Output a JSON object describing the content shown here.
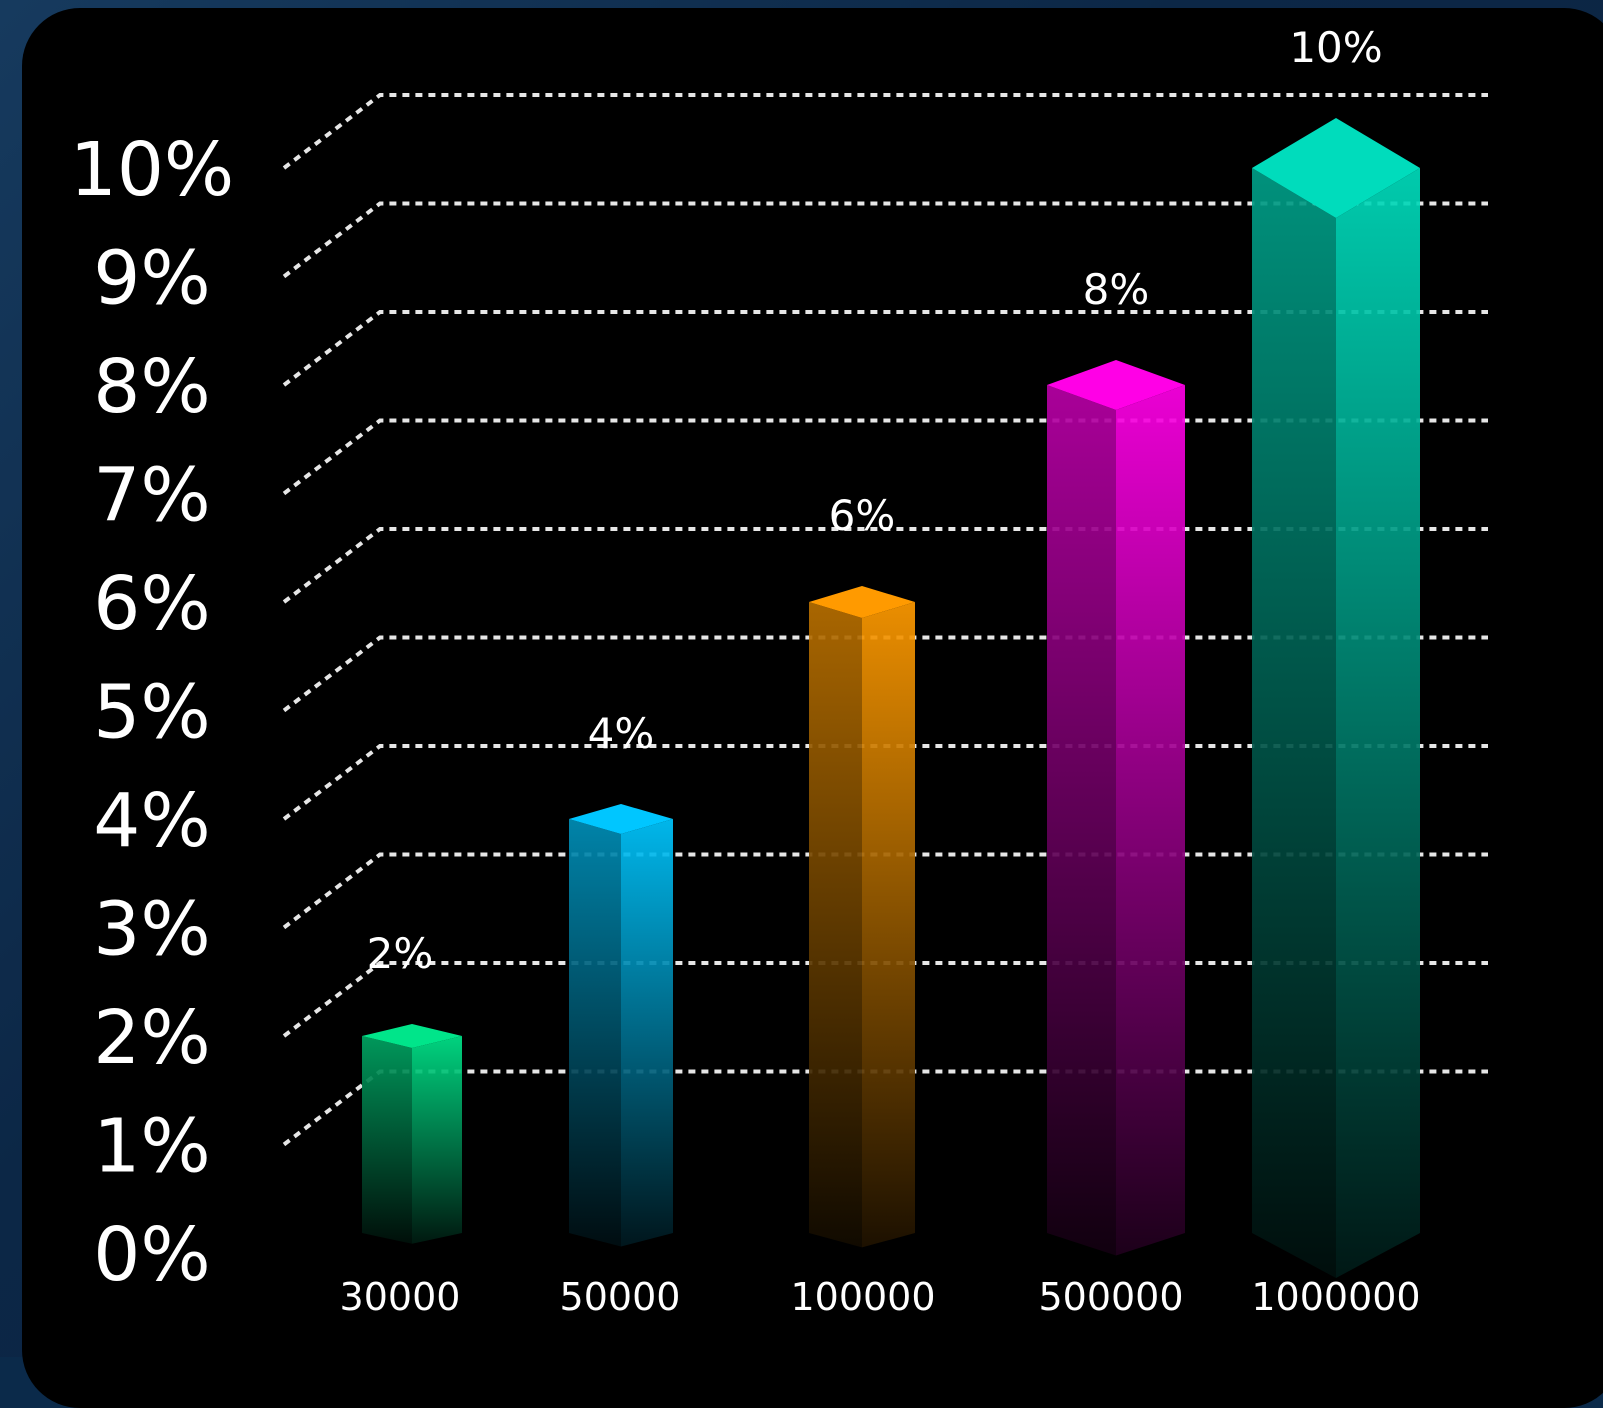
{
  "chart_data": {
    "type": "bar",
    "title": "",
    "xlabel": "",
    "ylabel": "",
    "categories": [
      "30000",
      "50000",
      "100000",
      "500000",
      "1000000"
    ],
    "values": [
      2,
      4,
      6,
      8,
      10
    ],
    "data_labels": [
      "2%",
      "4%",
      "6%",
      "8%",
      "10%"
    ],
    "y_ticks": [
      "0%",
      "1%",
      "2%",
      "3%",
      "4%",
      "5%",
      "6%",
      "7%",
      "8%",
      "9%",
      "10%"
    ],
    "ylim": [
      0,
      10
    ],
    "grid": true,
    "legend": "none",
    "colors": [
      "#00e58a",
      "#00c6ff",
      "#ff9a00",
      "#ff00e6",
      "#00dcbc"
    ]
  }
}
